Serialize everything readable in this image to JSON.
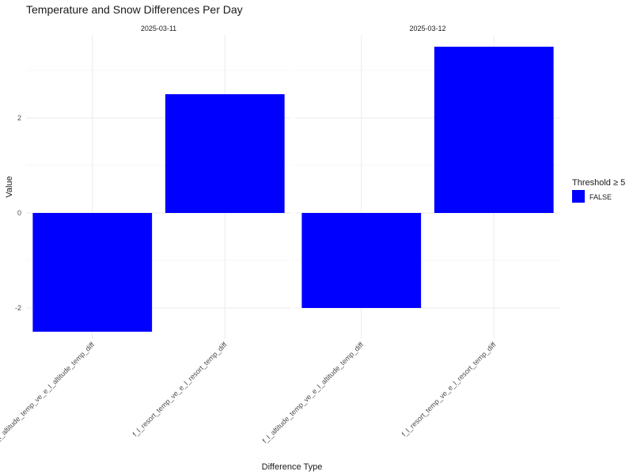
{
  "chart_data": {
    "type": "bar",
    "title": "Temperature and Snow Differences Per Day",
    "xlabel": "Difference Type",
    "ylabel": "Value",
    "ylim": [
      -2.65,
      3.75
    ],
    "yticks": [
      -2,
      0,
      2
    ],
    "grid": true,
    "bar_color": "#0000ff",
    "legend": {
      "title": "Threshold ≥ 5",
      "position": "right",
      "entries": [
        {
          "label": "FALSE",
          "color": "#0000ff"
        }
      ]
    },
    "facets": [
      {
        "label": "2025-03-11",
        "categories": [
          "f_l_altitude_temp_ve_e_l_altitude_temp_diff",
          "f_l_resort_temp_ve_e_l_resort_temp_diff"
        ],
        "values": [
          -2.5,
          2.5
        ]
      },
      {
        "label": "2025-03-12",
        "categories": [
          "f_l_altitude_temp_ve_e_l_altitude_temp_diff",
          "f_l_resort_temp_ve_e_l_resort_temp_diff"
        ],
        "values": [
          -2.0,
          3.5
        ]
      }
    ]
  }
}
